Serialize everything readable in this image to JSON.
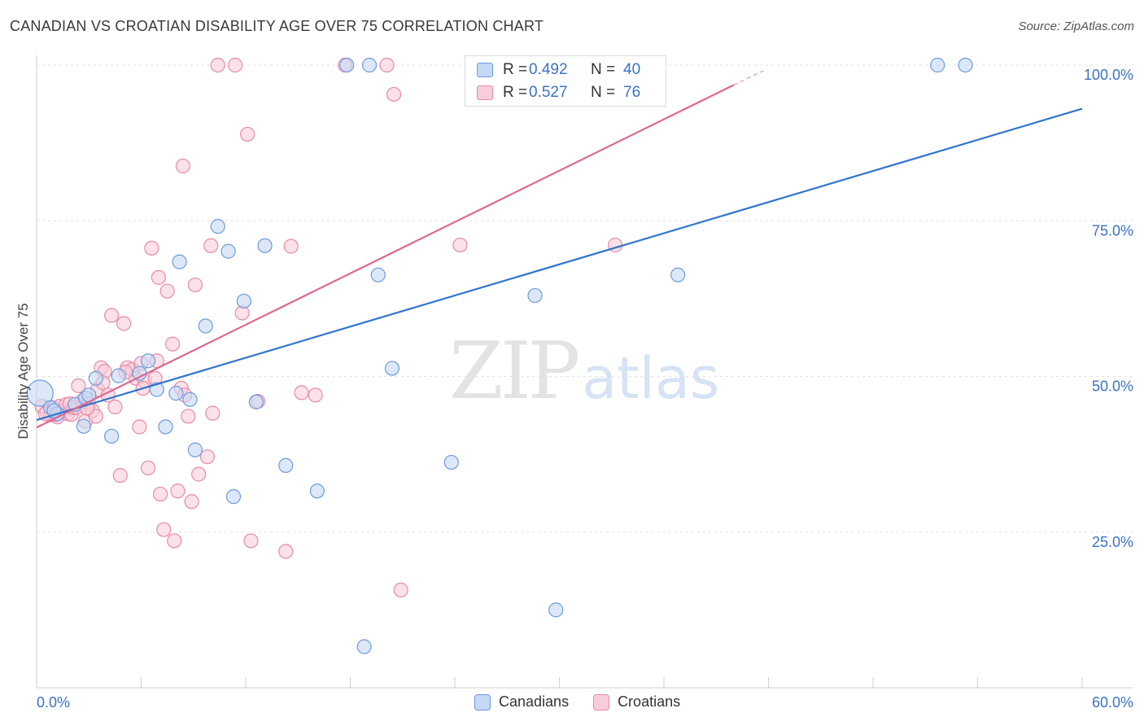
{
  "title": "CANADIAN VS CROATIAN DISABILITY AGE OVER 75 CORRELATION CHART",
  "source": "Source: ZipAtlas.com",
  "watermark": {
    "zip": "ZIP",
    "atlas": "atlas"
  },
  "legend_top": {
    "rows": [
      {
        "r_label": "R =",
        "r_value": "0.492",
        "n_label": "N =",
        "n_value": "40"
      },
      {
        "r_label": "R =",
        "r_value": "0.527",
        "n_label": "N =",
        "n_value": "76"
      }
    ]
  },
  "colors": {
    "canadians_fill": "#c5d8f4",
    "canadians_stroke": "#6b9be0",
    "canadians_line": "#2f74d0",
    "croatians_fill": "#f8cdd9",
    "croatians_stroke": "#e88aa6",
    "croatians_line": "#e0668f",
    "value_text": "#3a72c4",
    "grid": "#e2e2e2"
  },
  "chart_data": {
    "type": "scatter",
    "title": "CANADIAN VS CROATIAN DISABILITY AGE OVER 75 CORRELATION CHART",
    "xlabel": "",
    "ylabel": "Disability Age Over 75",
    "xlim": [
      0,
      60
    ],
    "ylim": [
      0,
      101
    ],
    "x_tick_labels": [
      "0.0%",
      "60.0%"
    ],
    "y_tick_values": [
      25,
      50,
      75,
      100
    ],
    "y_tick_labels": [
      "25.0%",
      "50.0%",
      "75.0%",
      "100.0%"
    ],
    "grid": true,
    "legend": "bottom-center",
    "series": [
      {
        "name": "Canadians",
        "r": 0.492,
        "n": 40,
        "trend": {
          "x0": 0,
          "y0": 43.0,
          "x1": 60,
          "y1": 93.0
        },
        "points": [
          [
            0.2,
            47.3
          ],
          [
            0.8,
            45.0
          ],
          [
            1.2,
            44.0
          ],
          [
            2.2,
            45.5
          ],
          [
            2.7,
            42.0
          ],
          [
            2.8,
            46.5
          ],
          [
            3.4,
            49.7
          ],
          [
            4.3,
            40.4
          ],
          [
            4.7,
            50.1
          ],
          [
            5.9,
            50.5
          ],
          [
            6.4,
            52.5
          ],
          [
            6.9,
            47.9
          ],
          [
            7.4,
            41.9
          ],
          [
            8.0,
            47.3
          ],
          [
            8.2,
            68.4
          ],
          [
            8.8,
            46.3
          ],
          [
            9.1,
            38.2
          ],
          [
            9.7,
            58.1
          ],
          [
            10.4,
            74.1
          ],
          [
            11.0,
            70.1
          ],
          [
            11.3,
            30.7
          ],
          [
            11.9,
            62.1
          ],
          [
            12.6,
            45.9
          ],
          [
            13.1,
            71.0
          ],
          [
            14.3,
            35.7
          ],
          [
            16.1,
            31.6
          ],
          [
            17.8,
            100.0
          ],
          [
            18.8,
            6.6
          ],
          [
            19.1,
            100.0
          ],
          [
            19.6,
            66.3
          ],
          [
            20.4,
            51.3
          ],
          [
            23.8,
            36.2
          ],
          [
            28.6,
            63.0
          ],
          [
            29.8,
            12.5
          ],
          [
            35.3,
            100.0
          ],
          [
            36.8,
            66.3
          ],
          [
            51.7,
            100.0
          ],
          [
            53.3,
            100.0
          ],
          [
            1.0,
            44.5
          ],
          [
            3.0,
            47.0
          ]
        ]
      },
      {
        "name": "Croatians",
        "r": 0.527,
        "n": 76,
        "trend": {
          "x0": 0,
          "y0": 41.8,
          "x1": 40,
          "y1": 96.8
        },
        "trend_dashed_to": {
          "x": 41.7,
          "y": 99.1
        },
        "points": [
          [
            0.3,
            45.2
          ],
          [
            0.6,
            44.3
          ],
          [
            0.8,
            43.8
          ],
          [
            1.0,
            44.9
          ],
          [
            1.2,
            43.5
          ],
          [
            1.3,
            45.2
          ],
          [
            1.5,
            44.3
          ],
          [
            1.7,
            45.5
          ],
          [
            1.8,
            44.0
          ],
          [
            2.0,
            43.9
          ],
          [
            2.1,
            45.0
          ],
          [
            2.3,
            45.0
          ],
          [
            2.4,
            48.5
          ],
          [
            2.6,
            46.0
          ],
          [
            2.8,
            42.8
          ],
          [
            3.0,
            45.6
          ],
          [
            3.2,
            44.5
          ],
          [
            3.4,
            43.6
          ],
          [
            3.5,
            47.9
          ],
          [
            3.7,
            51.4
          ],
          [
            3.9,
            50.8
          ],
          [
            4.1,
            47.0
          ],
          [
            4.3,
            59.8
          ],
          [
            4.5,
            45.1
          ],
          [
            4.8,
            34.1
          ],
          [
            5.0,
            58.5
          ],
          [
            5.2,
            51.4
          ],
          [
            5.5,
            51.1
          ],
          [
            5.7,
            49.7
          ],
          [
            5.9,
            41.9
          ],
          [
            6.0,
            52.1
          ],
          [
            6.2,
            49.2
          ],
          [
            6.4,
            35.3
          ],
          [
            6.6,
            70.6
          ],
          [
            6.8,
            49.7
          ],
          [
            6.9,
            52.5
          ],
          [
            7.0,
            65.9
          ],
          [
            7.1,
            31.1
          ],
          [
            7.3,
            25.4
          ],
          [
            7.5,
            63.7
          ],
          [
            7.8,
            55.2
          ],
          [
            7.9,
            23.6
          ],
          [
            8.1,
            31.6
          ],
          [
            8.3,
            48.1
          ],
          [
            8.4,
            83.8
          ],
          [
            8.5,
            47.0
          ],
          [
            8.7,
            43.6
          ],
          [
            8.9,
            29.9
          ],
          [
            9.1,
            64.7
          ],
          [
            9.3,
            34.3
          ],
          [
            9.8,
            37.1
          ],
          [
            10.0,
            71.0
          ],
          [
            10.1,
            44.1
          ],
          [
            10.4,
            100.0
          ],
          [
            11.4,
            100.0
          ],
          [
            11.8,
            60.2
          ],
          [
            12.1,
            88.9
          ],
          [
            12.3,
            23.6
          ],
          [
            12.7,
            46.0
          ],
          [
            14.3,
            21.9
          ],
          [
            14.6,
            70.9
          ],
          [
            15.2,
            47.4
          ],
          [
            16.0,
            47.0
          ],
          [
            17.7,
            100.0
          ],
          [
            20.1,
            100.0
          ],
          [
            20.5,
            95.3
          ],
          [
            20.9,
            15.7
          ],
          [
            24.3,
            71.1
          ],
          [
            33.2,
            71.1
          ],
          [
            1.9,
            45.6
          ],
          [
            2.9,
            44.9
          ],
          [
            3.8,
            49.0
          ],
          [
            5.1,
            50.7
          ],
          [
            6.1,
            48.1
          ],
          [
            0.5,
            44.0
          ],
          [
            1.1,
            43.9
          ]
        ]
      }
    ]
  }
}
